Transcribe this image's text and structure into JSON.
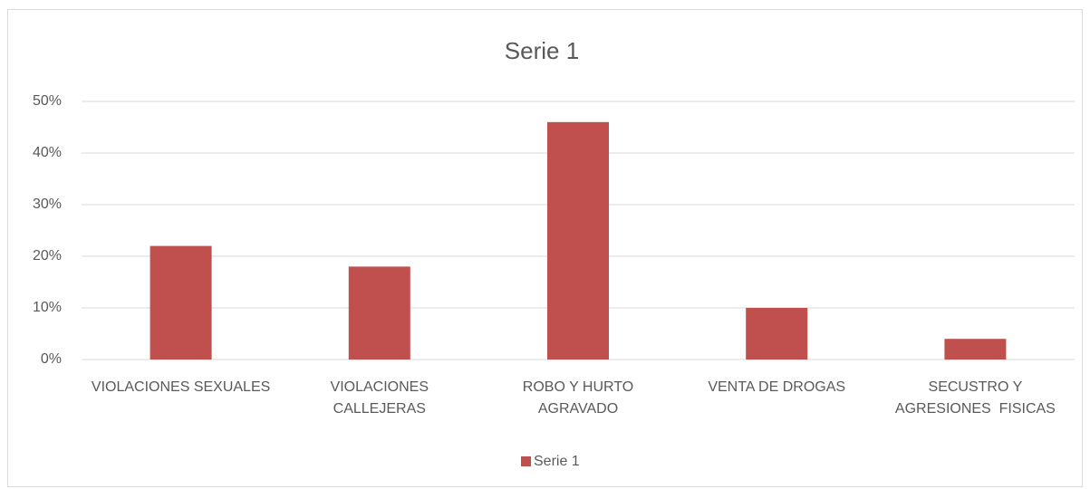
{
  "chart_data": {
    "type": "bar",
    "title": "Serie 1",
    "categories": [
      "VIOLACIONES SEXUALES",
      "VIOLACIONES CALLEJERAS",
      "ROBO Y HURTO AGRAVADO",
      "VENTA DE DROGAS",
      "SECUSTRO Y AGRESIONES  FISICAS"
    ],
    "series": [
      {
        "name": "Serie 1",
        "color": "#c0504d",
        "values": [
          22,
          18,
          46,
          10,
          4
        ]
      }
    ],
    "ylim": [
      0,
      50
    ],
    "yticks": [
      {
        "value": 0,
        "label": "0%"
      },
      {
        "value": 10,
        "label": "10%"
      },
      {
        "value": 20,
        "label": "20%"
      },
      {
        "value": 30,
        "label": "30%"
      },
      {
        "value": 40,
        "label": "40%"
      },
      {
        "value": 50,
        "label": "50%"
      }
    ],
    "grid": true,
    "legend": "bottom"
  }
}
